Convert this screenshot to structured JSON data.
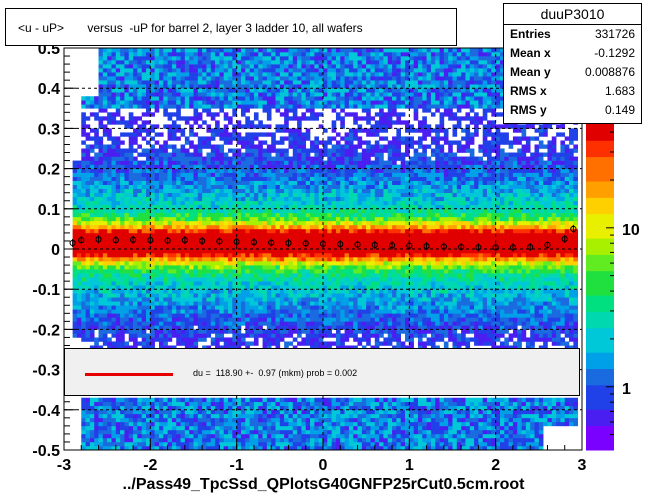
{
  "title": "<u - uP>       versus  -uP for barrel 2, layer 3 ladder 10, all wafers",
  "stats": {
    "name": "duuP3010",
    "rows": [
      {
        "label": "Entries",
        "value": "331726"
      },
      {
        "label": "Mean x",
        "value": "-0.1292"
      },
      {
        "label": "Mean y",
        "value": "0.008876"
      },
      {
        "label": "RMS x",
        "value": "1.683"
      },
      {
        "label": "RMS y",
        "value": "0.149"
      }
    ]
  },
  "fit": {
    "text": "du =  118.90 +-  0.97 (mkm) prob = 0.002",
    "color": "#e60000"
  },
  "xtitle": "../Pass49_TpcSsd_QPlotsG40GNFP25rCut0.5cm.root",
  "chart_data": {
    "type": "heatmap",
    "xlim": [
      -3,
      3
    ],
    "ylim": [
      -0.5,
      0.5
    ],
    "x_ticks": [
      "-3",
      "-2",
      "-1",
      "0",
      "1",
      "2",
      "3"
    ],
    "y_ticks": [
      "-0.5",
      "-0.4",
      "-0.3",
      "-0.2",
      "-0.1",
      "0",
      "0.1",
      "0.2",
      "0.3",
      "0.4",
      "0.5"
    ],
    "z_scale": "log",
    "z_ticks": [
      "1",
      "10"
    ],
    "z_tick_values": [
      1,
      10
    ],
    "z_range": [
      0.4,
      45
    ],
    "grid": true,
    "profile": {
      "x": [
        -2.9,
        -2.8,
        -2.6,
        -2.4,
        -2.2,
        -2.0,
        -1.8,
        -1.6,
        -1.4,
        -1.2,
        -1.0,
        -0.8,
        -0.6,
        -0.4,
        -0.2,
        0.0,
        0.2,
        0.4,
        0.6,
        0.8,
        1.0,
        1.2,
        1.4,
        1.6,
        1.8,
        2.0,
        2.2,
        2.4,
        2.6,
        2.8,
        2.9
      ],
      "y": [
        0.015,
        0.022,
        0.024,
        0.022,
        0.023,
        0.022,
        0.021,
        0.022,
        0.02,
        0.019,
        0.018,
        0.017,
        0.016,
        0.015,
        0.014,
        0.013,
        0.012,
        0.011,
        0.01,
        0.009,
        0.008,
        0.007,
        0.006,
        0.005,
        0.004,
        0.004,
        0.004,
        0.005,
        0.01,
        0.025,
        0.05
      ]
    }
  }
}
